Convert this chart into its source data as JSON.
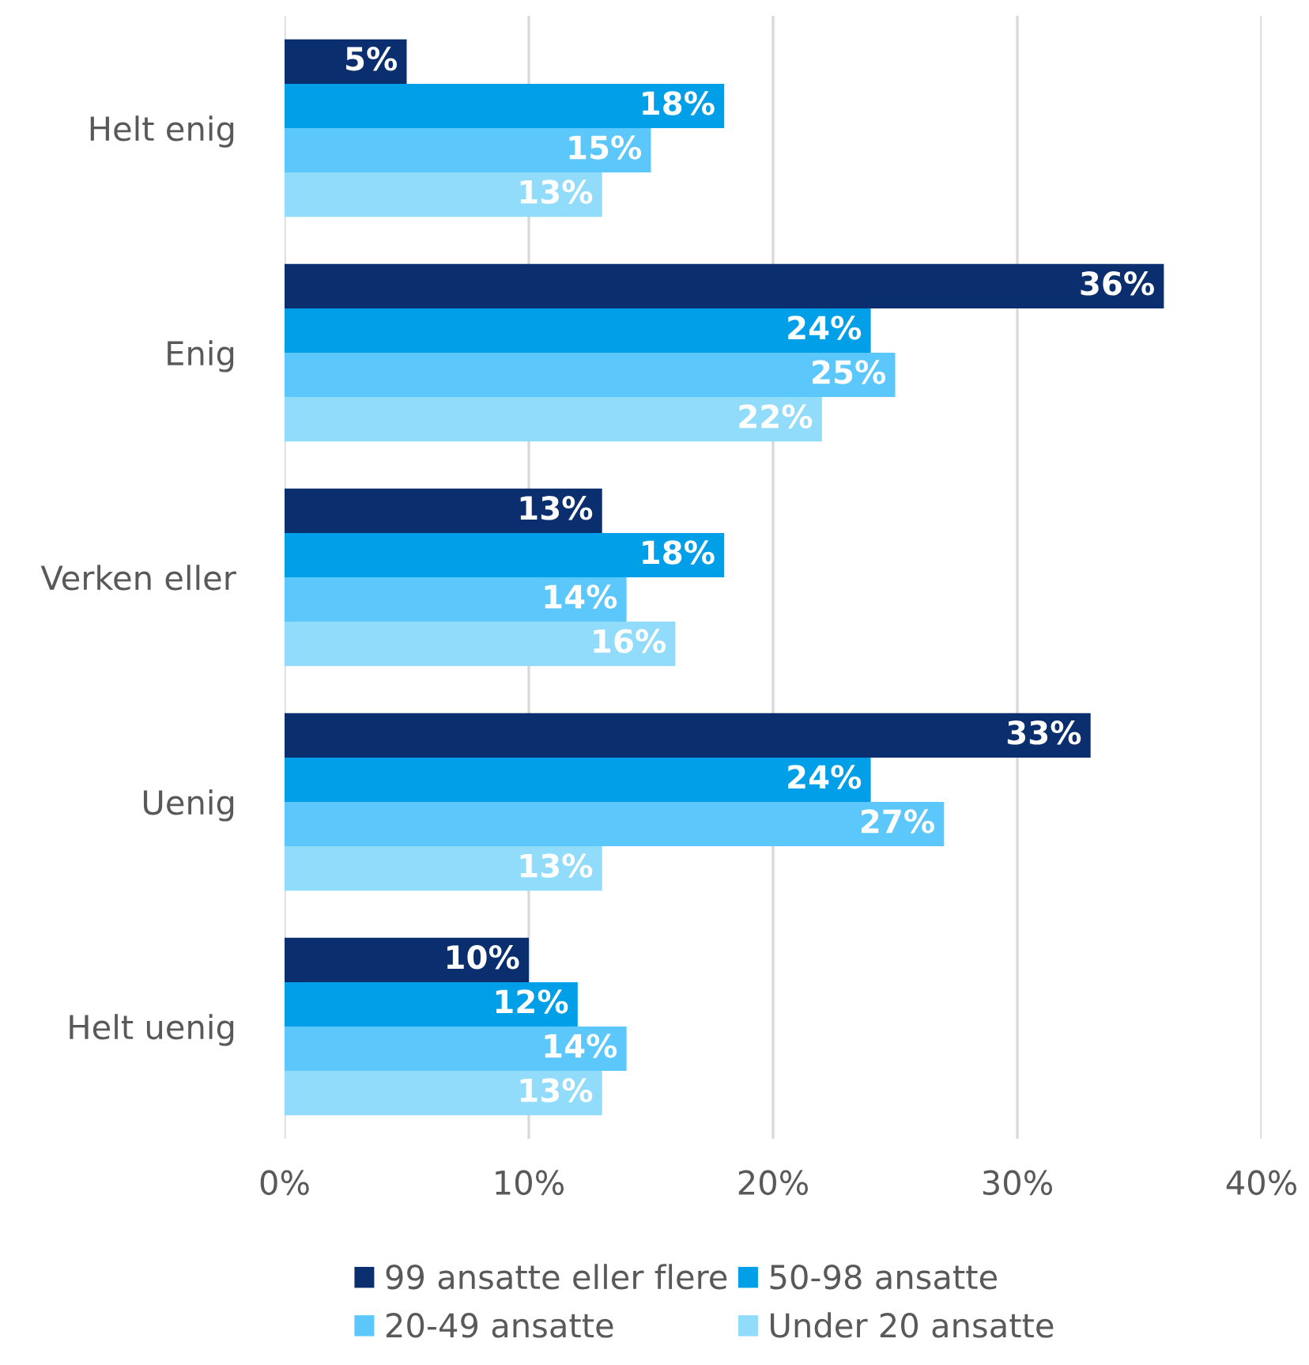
{
  "chart_data": {
    "type": "bar",
    "orientation": "horizontal",
    "categories": [
      "Helt enig",
      "Enig",
      "Verken eller",
      "Uenig",
      "Helt uenig"
    ],
    "series": [
      {
        "name": "99 ansatte eller flere",
        "color": "#0b2f6e",
        "values": [
          5,
          36,
          13,
          33,
          10
        ],
        "value_labels": [
          "5%",
          "36%",
          "13%",
          "33%",
          "10%"
        ]
      },
      {
        "name": "50-98 ansatte",
        "color": "#009fe8",
        "values": [
          18,
          24,
          18,
          24,
          12
        ],
        "value_labels": [
          "18%",
          "24%",
          "18%",
          "24%",
          "12%"
        ]
      },
      {
        "name": "20-49 ansatte",
        "color": "#5bc7fb",
        "values": [
          15,
          25,
          14,
          27,
          14
        ],
        "value_labels": [
          "15%",
          "25%",
          "14%",
          "27%",
          "14%"
        ]
      },
      {
        "name": "Under 20 ansatte",
        "color": "#91dbfb",
        "values": [
          13,
          22,
          16,
          13,
          13
        ],
        "value_labels": [
          "13%",
          "22%",
          "16%",
          "13%",
          "13%"
        ]
      }
    ],
    "xlim": [
      0,
      40
    ],
    "xticks": [
      {
        "value": 0,
        "label": "0%"
      },
      {
        "value": 10,
        "label": "10%"
      },
      {
        "value": 20,
        "label": "20%"
      },
      {
        "value": 30,
        "label": "30%"
      },
      {
        "value": 40,
        "label": "40%"
      }
    ],
    "grid": "x",
    "legend": "bottom"
  }
}
